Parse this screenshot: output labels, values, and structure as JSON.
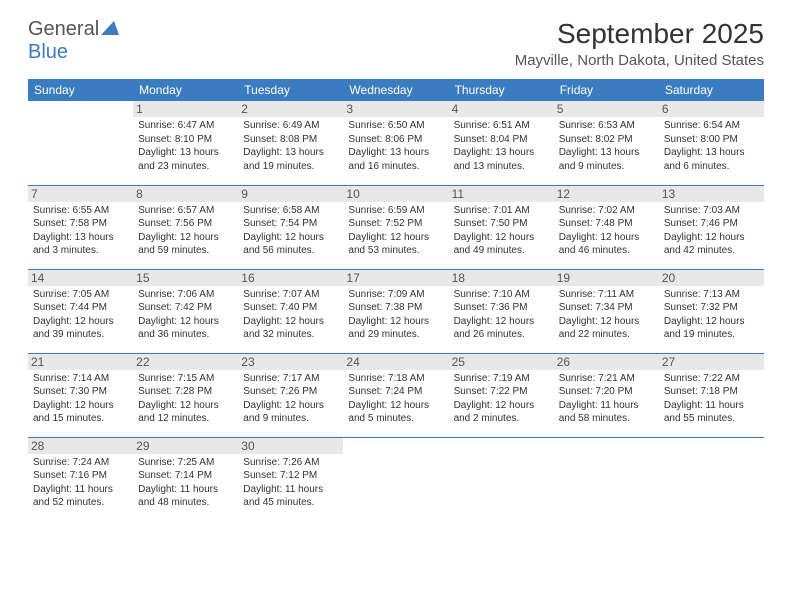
{
  "logo": {
    "text1": "General",
    "text2": "Blue"
  },
  "header": {
    "title": "September 2025",
    "location": "Mayville, North Dakota, United States"
  },
  "colors": {
    "header_bg": "#3b7bbf",
    "header_fg": "#ffffff",
    "daynum_bg": "#e8e8e8",
    "border": "#3b7bbf"
  },
  "weekdays": [
    "Sunday",
    "Monday",
    "Tuesday",
    "Wednesday",
    "Thursday",
    "Friday",
    "Saturday"
  ],
  "weeks": [
    [
      null,
      {
        "n": "1",
        "sr": "Sunrise: 6:47 AM",
        "ss": "Sunset: 8:10 PM",
        "dl": "Daylight: 13 hours and 23 minutes."
      },
      {
        "n": "2",
        "sr": "Sunrise: 6:49 AM",
        "ss": "Sunset: 8:08 PM",
        "dl": "Daylight: 13 hours and 19 minutes."
      },
      {
        "n": "3",
        "sr": "Sunrise: 6:50 AM",
        "ss": "Sunset: 8:06 PM",
        "dl": "Daylight: 13 hours and 16 minutes."
      },
      {
        "n": "4",
        "sr": "Sunrise: 6:51 AM",
        "ss": "Sunset: 8:04 PM",
        "dl": "Daylight: 13 hours and 13 minutes."
      },
      {
        "n": "5",
        "sr": "Sunrise: 6:53 AM",
        "ss": "Sunset: 8:02 PM",
        "dl": "Daylight: 13 hours and 9 minutes."
      },
      {
        "n": "6",
        "sr": "Sunrise: 6:54 AM",
        "ss": "Sunset: 8:00 PM",
        "dl": "Daylight: 13 hours and 6 minutes."
      }
    ],
    [
      {
        "n": "7",
        "sr": "Sunrise: 6:55 AM",
        "ss": "Sunset: 7:58 PM",
        "dl": "Daylight: 13 hours and 3 minutes."
      },
      {
        "n": "8",
        "sr": "Sunrise: 6:57 AM",
        "ss": "Sunset: 7:56 PM",
        "dl": "Daylight: 12 hours and 59 minutes."
      },
      {
        "n": "9",
        "sr": "Sunrise: 6:58 AM",
        "ss": "Sunset: 7:54 PM",
        "dl": "Daylight: 12 hours and 56 minutes."
      },
      {
        "n": "10",
        "sr": "Sunrise: 6:59 AM",
        "ss": "Sunset: 7:52 PM",
        "dl": "Daylight: 12 hours and 53 minutes."
      },
      {
        "n": "11",
        "sr": "Sunrise: 7:01 AM",
        "ss": "Sunset: 7:50 PM",
        "dl": "Daylight: 12 hours and 49 minutes."
      },
      {
        "n": "12",
        "sr": "Sunrise: 7:02 AM",
        "ss": "Sunset: 7:48 PM",
        "dl": "Daylight: 12 hours and 46 minutes."
      },
      {
        "n": "13",
        "sr": "Sunrise: 7:03 AM",
        "ss": "Sunset: 7:46 PM",
        "dl": "Daylight: 12 hours and 42 minutes."
      }
    ],
    [
      {
        "n": "14",
        "sr": "Sunrise: 7:05 AM",
        "ss": "Sunset: 7:44 PM",
        "dl": "Daylight: 12 hours and 39 minutes."
      },
      {
        "n": "15",
        "sr": "Sunrise: 7:06 AM",
        "ss": "Sunset: 7:42 PM",
        "dl": "Daylight: 12 hours and 36 minutes."
      },
      {
        "n": "16",
        "sr": "Sunrise: 7:07 AM",
        "ss": "Sunset: 7:40 PM",
        "dl": "Daylight: 12 hours and 32 minutes."
      },
      {
        "n": "17",
        "sr": "Sunrise: 7:09 AM",
        "ss": "Sunset: 7:38 PM",
        "dl": "Daylight: 12 hours and 29 minutes."
      },
      {
        "n": "18",
        "sr": "Sunrise: 7:10 AM",
        "ss": "Sunset: 7:36 PM",
        "dl": "Daylight: 12 hours and 26 minutes."
      },
      {
        "n": "19",
        "sr": "Sunrise: 7:11 AM",
        "ss": "Sunset: 7:34 PM",
        "dl": "Daylight: 12 hours and 22 minutes."
      },
      {
        "n": "20",
        "sr": "Sunrise: 7:13 AM",
        "ss": "Sunset: 7:32 PM",
        "dl": "Daylight: 12 hours and 19 minutes."
      }
    ],
    [
      {
        "n": "21",
        "sr": "Sunrise: 7:14 AM",
        "ss": "Sunset: 7:30 PM",
        "dl": "Daylight: 12 hours and 15 minutes."
      },
      {
        "n": "22",
        "sr": "Sunrise: 7:15 AM",
        "ss": "Sunset: 7:28 PM",
        "dl": "Daylight: 12 hours and 12 minutes."
      },
      {
        "n": "23",
        "sr": "Sunrise: 7:17 AM",
        "ss": "Sunset: 7:26 PM",
        "dl": "Daylight: 12 hours and 9 minutes."
      },
      {
        "n": "24",
        "sr": "Sunrise: 7:18 AM",
        "ss": "Sunset: 7:24 PM",
        "dl": "Daylight: 12 hours and 5 minutes."
      },
      {
        "n": "25",
        "sr": "Sunrise: 7:19 AM",
        "ss": "Sunset: 7:22 PM",
        "dl": "Daylight: 12 hours and 2 minutes."
      },
      {
        "n": "26",
        "sr": "Sunrise: 7:21 AM",
        "ss": "Sunset: 7:20 PM",
        "dl": "Daylight: 11 hours and 58 minutes."
      },
      {
        "n": "27",
        "sr": "Sunrise: 7:22 AM",
        "ss": "Sunset: 7:18 PM",
        "dl": "Daylight: 11 hours and 55 minutes."
      }
    ],
    [
      {
        "n": "28",
        "sr": "Sunrise: 7:24 AM",
        "ss": "Sunset: 7:16 PM",
        "dl": "Daylight: 11 hours and 52 minutes."
      },
      {
        "n": "29",
        "sr": "Sunrise: 7:25 AM",
        "ss": "Sunset: 7:14 PM",
        "dl": "Daylight: 11 hours and 48 minutes."
      },
      {
        "n": "30",
        "sr": "Sunrise: 7:26 AM",
        "ss": "Sunset: 7:12 PM",
        "dl": "Daylight: 11 hours and 45 minutes."
      },
      null,
      null,
      null,
      null
    ]
  ]
}
